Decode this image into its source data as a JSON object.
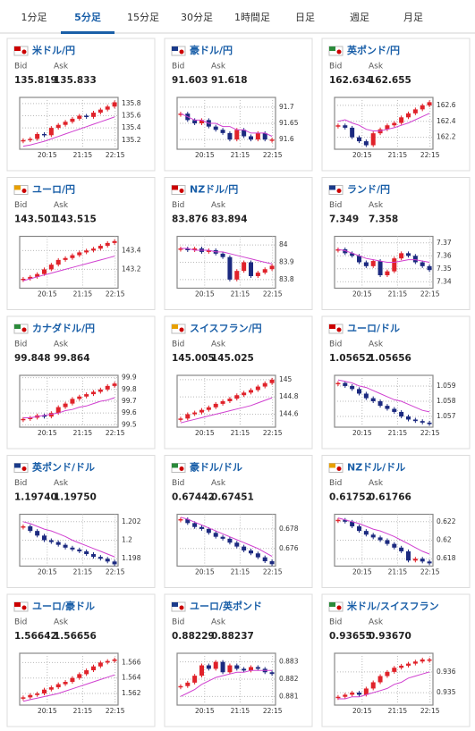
{
  "tabs": [
    "1分足",
    "5分足",
    "15分足",
    "30分足",
    "1時間足",
    "日足",
    "週足",
    "月足"
  ],
  "active_tab": 1,
  "bid_label": "Bid",
  "ask_label": "Ask",
  "xticks": [
    "20:15",
    "21:15",
    "22:15"
  ],
  "up_color": "#e0222a",
  "down_color": "#1c2a80",
  "ma_color": "#d040d0",
  "cards": [
    {
      "name": "米ドル/円",
      "bid": "135.819",
      "ask": "135.833",
      "ylim": [
        135.05,
        135.9
      ],
      "yticks": [
        135.2,
        135.4,
        135.6,
        135.8
      ],
      "closes": [
        135.2,
        135.22,
        135.3,
        135.28,
        135.4,
        135.45,
        135.5,
        135.55,
        135.6,
        135.58,
        135.65,
        135.7,
        135.75,
        135.82
      ],
      "ma": [
        135.1,
        135.12,
        135.15,
        135.18,
        135.22,
        135.26,
        135.3,
        135.34,
        135.38,
        135.42,
        135.46,
        135.5,
        135.54,
        135.58
      ]
    },
    {
      "name": "豪ドル/円",
      "bid": "91.603",
      "ask": "91.618",
      "ylim": [
        91.57,
        91.73
      ],
      "yticks": [
        91.6,
        91.65,
        91.7
      ],
      "closes": [
        91.68,
        91.66,
        91.65,
        91.66,
        91.64,
        91.63,
        91.62,
        91.6,
        91.63,
        91.61,
        91.6,
        91.62,
        91.6,
        91.6
      ],
      "ma": [
        91.68,
        91.67,
        91.66,
        91.66,
        91.65,
        91.65,
        91.64,
        91.64,
        91.63,
        91.63,
        91.62,
        91.62,
        91.62,
        91.61
      ]
    },
    {
      "name": "英ポンド/円",
      "bid": "162.634",
      "ask": "162.655",
      "ylim": [
        162.05,
        162.7
      ],
      "yticks": [
        162.2,
        162.4,
        162.6
      ],
      "closes": [
        162.35,
        162.32,
        162.2,
        162.15,
        162.1,
        162.25,
        162.3,
        162.35,
        162.38,
        162.45,
        162.5,
        162.55,
        162.6,
        162.64
      ],
      "ma": [
        162.4,
        162.42,
        162.38,
        162.35,
        162.3,
        162.28,
        162.28,
        162.3,
        162.32,
        162.35,
        162.38,
        162.42,
        162.46,
        162.5
      ]
    },
    {
      "name": "ユーロ/円",
      "bid": "143.501",
      "ask": "143.515",
      "ylim": [
        143.0,
        143.55
      ],
      "yticks": [
        143.2,
        143.4
      ],
      "closes": [
        143.1,
        143.12,
        143.15,
        143.2,
        143.25,
        143.3,
        143.32,
        143.35,
        143.38,
        143.4,
        143.42,
        143.45,
        143.48,
        143.5
      ],
      "ma": [
        143.08,
        143.1,
        143.12,
        143.14,
        143.16,
        143.18,
        143.2,
        143.22,
        143.24,
        143.26,
        143.28,
        143.3,
        143.32,
        143.34
      ]
    },
    {
      "name": "NZドル/円",
      "bid": "83.876",
      "ask": "83.894",
      "ylim": [
        83.75,
        84.05
      ],
      "yticks": [
        83.8,
        83.9,
        84
      ],
      "closes": [
        83.98,
        83.97,
        83.98,
        83.96,
        83.97,
        83.95,
        83.93,
        83.8,
        83.85,
        83.9,
        83.82,
        83.84,
        83.86,
        83.88
      ],
      "ma": [
        83.98,
        83.98,
        83.97,
        83.97,
        83.97,
        83.96,
        83.96,
        83.95,
        83.94,
        83.93,
        83.92,
        83.91,
        83.9,
        83.89
      ]
    },
    {
      "name": "ランド/円",
      "bid": "7.349",
      "ask": "7.358",
      "ylim": [
        7.335,
        7.375
      ],
      "yticks": [
        7.34,
        7.35,
        7.36,
        7.37
      ],
      "closes": [
        7.365,
        7.362,
        7.36,
        7.355,
        7.352,
        7.356,
        7.345,
        7.348,
        7.358,
        7.362,
        7.36,
        7.355,
        7.352,
        7.349
      ],
      "ma": [
        7.365,
        7.364,
        7.362,
        7.36,
        7.358,
        7.357,
        7.356,
        7.355,
        7.355,
        7.356,
        7.357,
        7.357,
        7.356,
        7.355
      ]
    },
    {
      "name": "カナダドル/円",
      "bid": "99.848",
      "ask": "99.864",
      "ylim": [
        99.48,
        99.92
      ],
      "yticks": [
        99.5,
        99.6,
        99.7,
        99.8,
        99.9
      ],
      "closes": [
        99.55,
        99.56,
        99.58,
        99.57,
        99.6,
        99.65,
        99.68,
        99.72,
        99.74,
        99.76,
        99.78,
        99.8,
        99.83,
        99.85
      ],
      "ma": [
        99.56,
        99.56,
        99.57,
        99.58,
        99.59,
        99.6,
        99.62,
        99.63,
        99.65,
        99.66,
        99.68,
        99.7,
        99.71,
        99.73
      ]
    },
    {
      "name": "スイスフラン/円",
      "bid": "145.005",
      "ask": "145.025",
      "ylim": [
        144.45,
        145.05
      ],
      "yticks": [
        144.6,
        144.8,
        145
      ],
      "closes": [
        144.55,
        144.6,
        144.62,
        144.65,
        144.68,
        144.72,
        144.75,
        144.78,
        144.82,
        144.85,
        144.88,
        144.92,
        144.96,
        145.0
      ],
      "ma": [
        144.5,
        144.52,
        144.54,
        144.56,
        144.58,
        144.6,
        144.62,
        144.64,
        144.66,
        144.68,
        144.7,
        144.73,
        144.76,
        144.79
      ]
    },
    {
      "name": "ユーロ/ドル",
      "bid": "1.05652",
      "ask": "1.05656",
      "ylim": [
        1.0563,
        1.0597
      ],
      "yticks": [
        1.057,
        1.058,
        1.059
      ],
      "closes": [
        1.0592,
        1.059,
        1.0588,
        1.0585,
        1.0582,
        1.058,
        1.0577,
        1.0575,
        1.0573,
        1.057,
        1.0568,
        1.0567,
        1.0566,
        1.0565
      ],
      "ma": [
        1.0594,
        1.0593,
        1.0592,
        1.059,
        1.0589,
        1.0587,
        1.0585,
        1.0583,
        1.0581,
        1.058,
        1.0578,
        1.0576,
        1.0574,
        1.0573
      ]
    },
    {
      "name": "英ポンド/ドル",
      "bid": "1.19740",
      "ask": "1.19750",
      "ylim": [
        1.1972,
        1.2028
      ],
      "yticks": [
        1.198,
        1.2,
        1.202
      ],
      "closes": [
        1.2015,
        1.201,
        1.2005,
        1.2,
        1.1998,
        1.1995,
        1.1992,
        1.199,
        1.1988,
        1.1985,
        1.1982,
        1.198,
        1.1977,
        1.1974
      ],
      "ma": [
        1.202,
        1.2018,
        1.2015,
        1.2012,
        1.201,
        1.2007,
        1.2004,
        1.2,
        1.1997,
        1.1994,
        1.1991,
        1.1988,
        1.1985,
        1.1982
      ]
    },
    {
      "name": "豪ドル/ドル",
      "bid": "0.67442",
      "ask": "0.67451",
      "ylim": [
        0.6742,
        0.6795
      ],
      "yticks": [
        0.676,
        0.678
      ],
      "closes": [
        0.679,
        0.6786,
        0.6782,
        0.678,
        0.6776,
        0.6772,
        0.677,
        0.6766,
        0.6762,
        0.6758,
        0.6755,
        0.6751,
        0.6747,
        0.6744
      ],
      "ma": [
        0.6792,
        0.679,
        0.6787,
        0.6784,
        0.6781,
        0.6778,
        0.6775,
        0.6772,
        0.6769,
        0.6766,
        0.6763,
        0.676,
        0.6756,
        0.6752
      ]
    },
    {
      "name": "NZドル/ドル",
      "bid": "0.61752",
      "ask": "0.61766",
      "ylim": [
        0.6172,
        0.6228
      ],
      "yticks": [
        0.618,
        0.62,
        0.622
      ],
      "closes": [
        0.6222,
        0.622,
        0.6215,
        0.621,
        0.6206,
        0.6203,
        0.62,
        0.6196,
        0.6192,
        0.6188,
        0.6178,
        0.618,
        0.6177,
        0.6175
      ],
      "ma": [
        0.6224,
        0.6222,
        0.622,
        0.6218,
        0.6215,
        0.6212,
        0.621,
        0.6207,
        0.6204,
        0.62,
        0.6196,
        0.6192,
        0.6188,
        0.6185
      ]
    },
    {
      "name": "ユーロ/豪ドル",
      "bid": "1.56642",
      "ask": "1.56656",
      "ylim": [
        1.5605,
        1.5672
      ],
      "yticks": [
        1.562,
        1.564,
        1.566
      ],
      "closes": [
        1.5615,
        1.5618,
        1.562,
        1.5625,
        1.5628,
        1.5632,
        1.5635,
        1.564,
        1.5645,
        1.565,
        1.5655,
        1.566,
        1.5662,
        1.5664
      ],
      "ma": [
        1.561,
        1.5612,
        1.5614,
        1.5616,
        1.5618,
        1.562,
        1.5623,
        1.5626,
        1.5629,
        1.5632,
        1.5635,
        1.5638,
        1.5641,
        1.5644
      ]
    },
    {
      "name": "ユーロ/英ポンド",
      "bid": "0.88229",
      "ask": "0.88237",
      "ylim": [
        0.8805,
        0.8835
      ],
      "yticks": [
        0.881,
        0.882,
        0.883
      ],
      "closes": [
        0.8816,
        0.8818,
        0.8822,
        0.8828,
        0.8826,
        0.883,
        0.8824,
        0.8828,
        0.8826,
        0.8825,
        0.8827,
        0.8826,
        0.8824,
        0.8823
      ],
      "ma": [
        0.881,
        0.8812,
        0.8814,
        0.8817,
        0.8819,
        0.8821,
        0.8822,
        0.8823,
        0.8824,
        0.8824,
        0.8825,
        0.8825,
        0.8825,
        0.8825
      ]
    },
    {
      "name": "米ドル/スイスフラン",
      "bid": "0.93655",
      "ask": "0.93670",
      "ylim": [
        0.9344,
        0.9369
      ],
      "yticks": [
        0.935,
        0.936
      ],
      "closes": [
        0.9348,
        0.9349,
        0.935,
        0.9349,
        0.9352,
        0.9355,
        0.9358,
        0.936,
        0.9362,
        0.9363,
        0.9364,
        0.9365,
        0.9366,
        0.9366
      ],
      "ma": [
        0.9347,
        0.9347,
        0.9348,
        0.9348,
        0.9349,
        0.935,
        0.9351,
        0.9352,
        0.9354,
        0.9355,
        0.9357,
        0.9358,
        0.9359,
        0.936
      ]
    }
  ]
}
